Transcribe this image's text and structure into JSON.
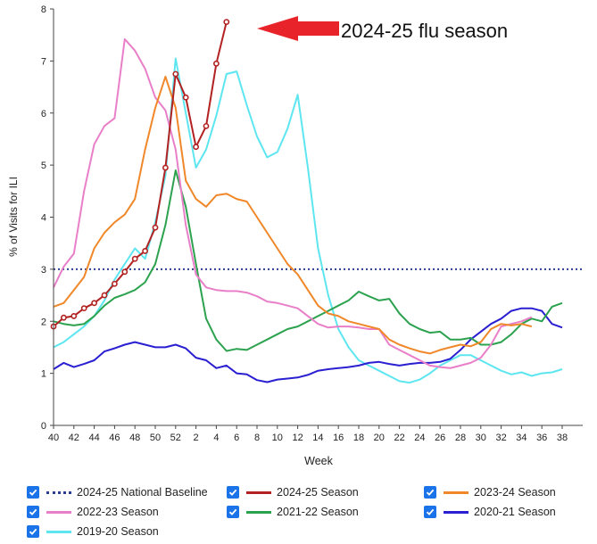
{
  "annotation": "2024-25 flu season",
  "colors": {
    "baseline": "#2c3e8f",
    "s2425": "#b22222",
    "s2324": "#f0882a",
    "s2223": "#e87fc8",
    "s2122": "#2ca24f",
    "s2021": "#2a1fd1",
    "s1920": "#5ee6f0",
    "arrow": "#e8232a",
    "checkbox": "#1a73e8"
  },
  "legend": [
    {
      "key": "baseline",
      "label": "2024-25 National Baseline",
      "style": "dotted"
    },
    {
      "key": "s2425",
      "label": "2024-25 Season",
      "style": "solid"
    },
    {
      "key": "s2324",
      "label": "2023-24 Season",
      "style": "solid"
    },
    {
      "key": "s2223",
      "label": "2022-23 Season",
      "style": "solid"
    },
    {
      "key": "s2122",
      "label": "2021-22 Season",
      "style": "solid"
    },
    {
      "key": "s2021",
      "label": "2020-21 Season",
      "style": "solid"
    },
    {
      "key": "s1920",
      "label": "2019-20 Season",
      "style": "solid"
    }
  ],
  "chart_data": {
    "type": "line",
    "title": "",
    "xlabel": "Week",
    "ylabel": "% of Visits for ILI",
    "ylim": [
      0,
      8
    ],
    "yticks": [
      "0",
      "1",
      "2",
      "3",
      "4",
      "5",
      "6",
      "7",
      "8"
    ],
    "x_tick_labels": [
      "40",
      "42",
      "44",
      "46",
      "48",
      "50",
      "52",
      "2",
      "4",
      "6",
      "8",
      "10",
      "12",
      "14",
      "16",
      "18",
      "20",
      "22",
      "24",
      "26",
      "28",
      "30",
      "32",
      "34",
      "36",
      "38"
    ],
    "baseline": 3.0,
    "series": [
      {
        "name": "2024-25 Season",
        "key": "s2425",
        "markers": true,
        "values": [
          1.9,
          2.07,
          2.1,
          2.25,
          2.35,
          2.5,
          2.72,
          2.95,
          3.2,
          3.35,
          3.8,
          4.95,
          6.75,
          6.3,
          5.35,
          5.75,
          6.95,
          7.75
        ]
      },
      {
        "name": "2023-24 Season",
        "key": "s2324",
        "values": [
          2.28,
          2.35,
          2.6,
          2.85,
          3.4,
          3.7,
          3.9,
          4.05,
          4.35,
          5.3,
          6.1,
          6.7,
          6.1,
          4.7,
          4.35,
          4.2,
          4.42,
          4.45,
          4.35,
          4.3,
          4.0,
          3.7,
          3.4,
          3.1,
          2.9,
          2.6,
          2.3,
          2.15,
          2.1,
          2.0,
          1.95,
          1.9,
          1.85,
          1.65,
          1.55,
          1.48,
          1.42,
          1.38,
          1.45,
          1.5,
          1.55,
          1.52,
          1.6,
          1.85,
          1.95,
          1.92,
          1.95,
          1.9
        ]
      },
      {
        "name": "2022-23 Season",
        "key": "s2223",
        "values": [
          2.65,
          3.05,
          3.3,
          4.5,
          5.4,
          5.75,
          5.9,
          7.42,
          7.2,
          6.85,
          6.3,
          6.05,
          5.3,
          3.85,
          2.9,
          2.65,
          2.6,
          2.58,
          2.58,
          2.55,
          2.48,
          2.38,
          2.35,
          2.3,
          2.25,
          2.1,
          1.95,
          1.88,
          1.9,
          1.9,
          1.88,
          1.85,
          1.85,
          1.55,
          1.45,
          1.35,
          1.25,
          1.15,
          1.12,
          1.1,
          1.15,
          1.2,
          1.3,
          1.55,
          1.9,
          1.95,
          2.0,
          2.08
        ]
      },
      {
        "name": "2021-22 Season",
        "key": "s2122",
        "values": [
          2.0,
          1.95,
          1.92,
          1.95,
          2.1,
          2.3,
          2.45,
          2.52,
          2.6,
          2.75,
          3.1,
          3.85,
          4.9,
          4.2,
          3.1,
          2.05,
          1.65,
          1.43,
          1.47,
          1.45,
          1.55,
          1.65,
          1.75,
          1.85,
          1.9,
          2.0,
          2.1,
          2.2,
          2.3,
          2.4,
          2.57,
          2.48,
          2.4,
          2.43,
          2.15,
          1.95,
          1.85,
          1.78,
          1.8,
          1.65,
          1.65,
          1.68,
          1.55,
          1.55,
          1.6,
          1.75,
          1.95,
          2.05,
          2.0,
          2.28,
          2.35
        ]
      },
      {
        "name": "2020-21 Season",
        "key": "s2021",
        "values": [
          1.08,
          1.2,
          1.12,
          1.18,
          1.25,
          1.42,
          1.48,
          1.55,
          1.6,
          1.55,
          1.5,
          1.5,
          1.55,
          1.48,
          1.3,
          1.25,
          1.1,
          1.15,
          1.0,
          0.98,
          0.87,
          0.83,
          0.88,
          0.9,
          0.92,
          0.97,
          1.05,
          1.08,
          1.1,
          1.12,
          1.15,
          1.2,
          1.22,
          1.18,
          1.15,
          1.18,
          1.2,
          1.2,
          1.22,
          1.28,
          1.45,
          1.65,
          1.8,
          1.95,
          2.05,
          2.2,
          2.25,
          2.25,
          2.2,
          1.95,
          1.88
        ]
      },
      {
        "name": "2019-20 Season",
        "key": "s1920",
        "values": [
          1.5,
          1.6,
          1.75,
          1.9,
          2.1,
          2.4,
          2.8,
          3.1,
          3.4,
          3.2,
          3.9,
          4.8,
          7.05,
          6.0,
          4.95,
          5.3,
          5.95,
          6.75,
          6.8,
          6.15,
          5.55,
          5.15,
          5.25,
          5.7,
          6.35,
          4.95,
          3.4,
          2.5,
          1.85,
          1.5,
          1.25,
          1.15,
          1.05,
          0.95,
          0.85,
          0.82,
          0.88,
          1.0,
          1.15,
          1.25,
          1.35,
          1.35,
          1.25,
          1.15,
          1.05,
          0.98,
          1.02,
          0.95,
          1.0,
          1.02,
          1.08
        ]
      }
    ]
  }
}
